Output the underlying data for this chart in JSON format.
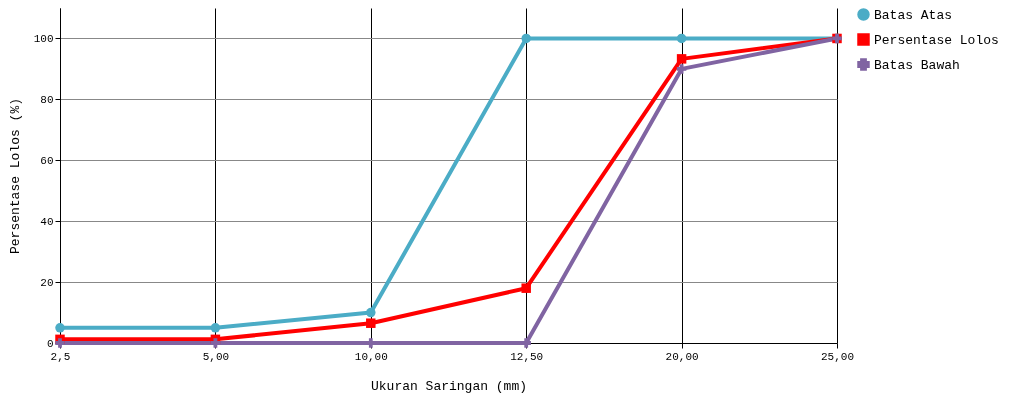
{
  "chart_data": {
    "type": "line",
    "xlabel": "Ukuran Saringan (mm)",
    "ylabel": "Persentase Lolos (%)",
    "categories": [
      "2,5",
      "5,00",
      "10,00",
      "12,50",
      "20,00",
      "25,00"
    ],
    "series": [
      {
        "name": "Batas Atas",
        "color": "#4bacc6",
        "marker": "circle",
        "values": [
          5,
          5,
          10,
          100,
          100,
          100
        ]
      },
      {
        "name": "Persentase Lolos",
        "color": "#ff0000",
        "marker": "square",
        "values": [
          1.2,
          1.2,
          6.5,
          18,
          93.3,
          100
        ]
      },
      {
        "name": "Batas Bawah",
        "color": "#8064a2",
        "marker": "cross",
        "values": [
          0,
          0,
          0,
          0,
          90,
          100
        ]
      }
    ],
    "ylim": [
      0,
      110
    ],
    "yticks": [
      0,
      20,
      40,
      60,
      80,
      100
    ],
    "grid": true,
    "legend": "top right"
  }
}
